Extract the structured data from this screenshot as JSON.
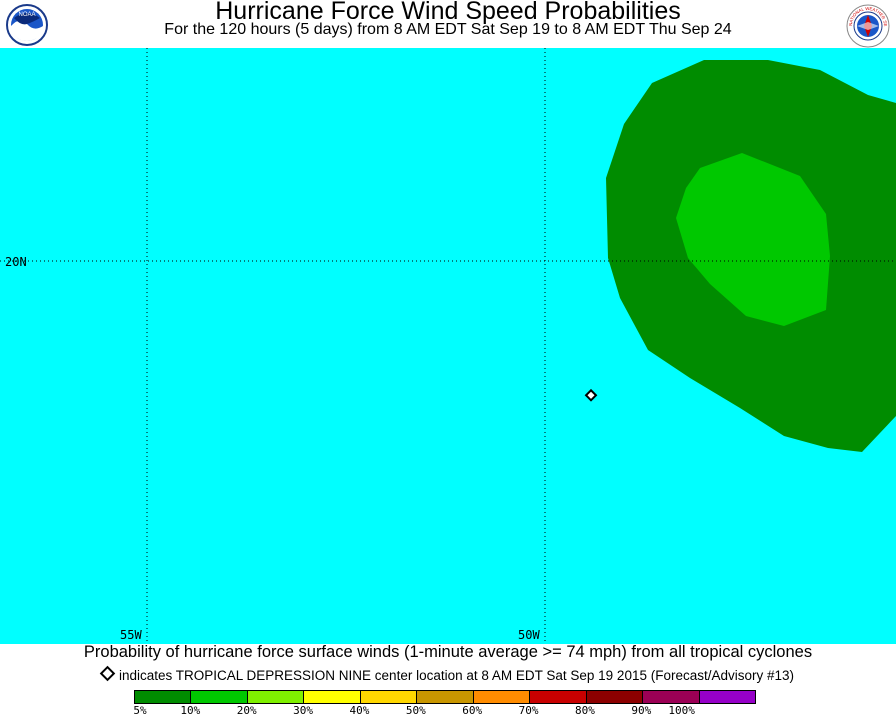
{
  "header": {
    "title": "Hurricane Force Wind Speed Probabilities",
    "subtitle": "For the 120 hours (5 days) from 8 AM EDT Sat Sep 19 to 8 AM EDT Thu Sep 24",
    "logo_left": "NOAA",
    "logo_right": "NATIONAL WEATHER SERVICE"
  },
  "map": {
    "ocean_color": "#00ffff",
    "lat_label": "20N",
    "lon_labels": [
      "55W",
      "50W"
    ],
    "contour_colors": {
      "5%": "#008c00",
      "10%": "#00c800"
    },
    "storm_marker": "diamond"
  },
  "caption": "Probability of hurricane force surface winds (1-minute average >= 74 mph) from all tropical cyclones",
  "marker_note": "indicates TROPICAL DEPRESSION NINE center location at 8 AM EDT Sat Sep 19 2015 (Forecast/Advisory #13)",
  "legend": {
    "labels": [
      "5%",
      "10%",
      "20%",
      "30%",
      "40%",
      "50%",
      "60%",
      "70%",
      "80%",
      "90%",
      "100%"
    ],
    "colors": [
      "#008c00",
      "#00c800",
      "#7ff000",
      "#ffff00",
      "#ffd700",
      "#c89600",
      "#ff8c00",
      "#c80000",
      "#8c0000",
      "#9b0055",
      "#9600c8"
    ]
  }
}
